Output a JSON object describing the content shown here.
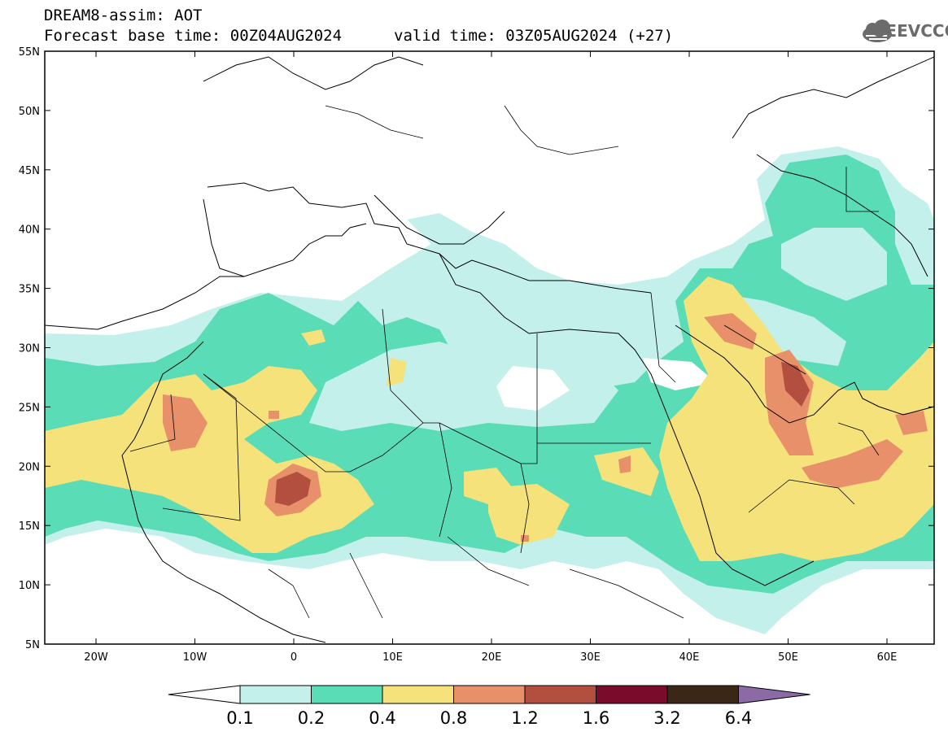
{
  "header": {
    "model": "DREAM8-assim: AOT",
    "base_time": "Forecast base time: 00Z04AUG2024",
    "valid_time": "valid time: 03Z05AUG2024 (+27)",
    "logo_text": "SEEVCCC"
  },
  "axes": {
    "lat_labels": [
      "55N",
      "50N",
      "45N",
      "40N",
      "35N",
      "30N",
      "25N",
      "20N",
      "15N",
      "10N",
      "5N"
    ],
    "lon_labels": [
      "20W",
      "10W",
      "0",
      "10E",
      "20E",
      "30E",
      "40E",
      "50E",
      "60E"
    ]
  },
  "colorbar": {
    "colors": [
      "#ffffff",
      "#c4f0ec",
      "#5adcb6",
      "#f5e27a",
      "#e7906a",
      "#b34f3f",
      "#7b0b2a",
      "#3a2716",
      "#8b6aa6"
    ],
    "labels": [
      "0.1",
      "0.2",
      "0.4",
      "0.8",
      "1.2",
      "1.6",
      "3.2",
      "6.4"
    ]
  }
}
